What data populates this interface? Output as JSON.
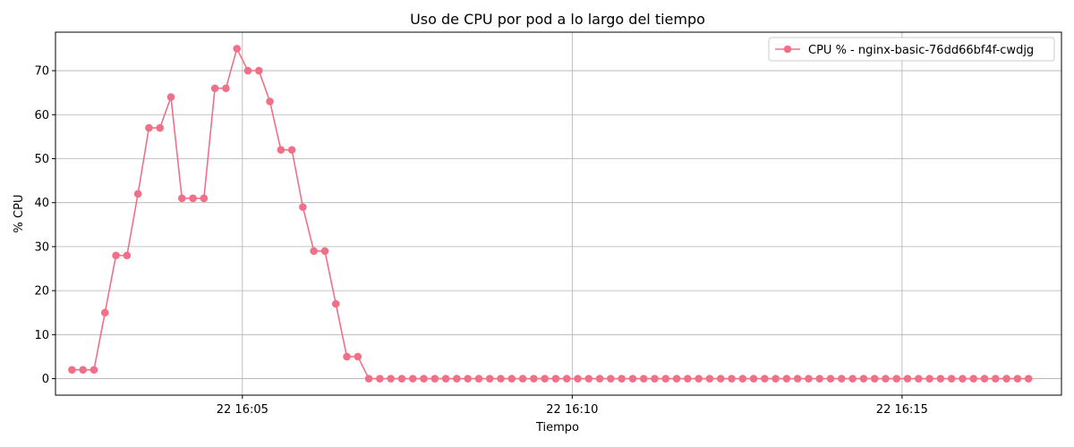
{
  "chart_data": {
    "type": "line",
    "title": "Uso de CPU por pod a lo largo del tiempo",
    "xlabel": "Tiempo",
    "ylabel": "% CPU",
    "x_start": "22 16:02:25",
    "x_interval_seconds": 10,
    "xlim": [
      "22 16:02:10",
      "22 16:17:25"
    ],
    "ylim": [
      -3.75,
      78.75
    ],
    "x_ticks": [
      {
        "label": "22 16:05",
        "time": "22 16:05:00"
      },
      {
        "label": "22 16:10",
        "time": "22 16:10:00"
      },
      {
        "label": "22 16:15",
        "time": "22 16:15:00"
      }
    ],
    "y_ticks": [
      0,
      10,
      20,
      30,
      40,
      50,
      60,
      70
    ],
    "grid": true,
    "legend_position": "top-right",
    "series": [
      {
        "name": "CPU % - nginx-basic-76dd66bf4f-cwdjg",
        "color": "#f07088",
        "marker": "circle",
        "values": [
          2,
          2,
          2,
          15,
          28,
          28,
          42,
          57,
          57,
          64,
          41,
          41,
          41,
          66,
          66,
          75,
          70,
          70,
          63,
          52,
          52,
          39,
          29,
          29,
          17,
          5,
          5,
          0,
          0,
          0,
          0,
          0,
          0,
          0,
          0,
          0,
          0,
          0,
          0,
          0,
          0,
          0,
          0,
          0,
          0,
          0,
          0,
          0,
          0,
          0,
          0,
          0,
          0,
          0,
          0,
          0,
          0,
          0,
          0,
          0,
          0,
          0,
          0,
          0,
          0,
          0,
          0,
          0,
          0,
          0,
          0,
          0,
          0,
          0,
          0,
          0,
          0,
          0,
          0,
          0,
          0,
          0,
          0,
          0,
          0,
          0,
          0,
          0
        ]
      }
    ]
  }
}
